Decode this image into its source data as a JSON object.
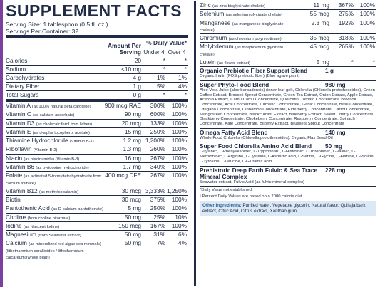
{
  "header": {
    "title": "SUPPLEMENT FACTS",
    "serving_size": "Serving Size: 1 tablespoon (0.5 fl. oz.)",
    "servings_per_container": "Servings Per Container: 32"
  },
  "columns": {
    "amount": "Amount Per Serving",
    "daily_value": "% Daily Value*",
    "under": "Under 4",
    "over": "Over 4"
  },
  "left_rows": [
    {
      "name": "Calories",
      "amount": "20",
      "under": "*",
      "over": "*"
    },
    {
      "name": "Sodium",
      "amount": "<10 mg",
      "under": "*",
      "over": "*"
    },
    {
      "name": "Carbohydrates",
      "amount": "4 g",
      "under": "1%",
      "over": "1%"
    },
    {
      "name": "Dietary Fiber",
      "amount": "1 g",
      "under": "5%",
      "over": "4%"
    },
    {
      "name": "Total Sugars",
      "amount": "0 g",
      "under": "*",
      "over": "*"
    },
    {
      "name": "Vitamin A",
      "note": "(as 100% natural beta carotene)",
      "amount": "900 mcg RAE",
      "under": "300%",
      "over": "100%"
    },
    {
      "name": "Vitamin C",
      "note": "(as calcium ascorbate)",
      "amount": "90 mg",
      "under": "600%",
      "over": "100%"
    },
    {
      "name": "Vitamin D3",
      "note": "(as cholecalciferol from lichen)",
      "amount": "20 mcg",
      "under": "133%",
      "over": "100%"
    },
    {
      "name": "Vitamin E",
      "note": "(as d-alpha tocopherol acetate)",
      "amount": "15 mg",
      "under": "250%",
      "over": "100%"
    },
    {
      "name": "Thiamine Hydrochloride",
      "note": "(Vitamin B-1)",
      "amount": "1.2 mg",
      "under": "1,200%",
      "over": "100%"
    },
    {
      "name": "Riboflavin",
      "note": "(Vitamin B-2)",
      "amount": "1.3 mg",
      "under": "260%",
      "over": "100%"
    },
    {
      "name": "Niacin",
      "note": "(as niacinamide) (Vitamin B-3)",
      "amount": "16 mg",
      "under": "267%",
      "over": "100%"
    },
    {
      "name": "Vitamin B6",
      "note": "(as pyridoxine hydrochloride)",
      "amount": "1.7 mg",
      "under": "340%",
      "over": "100%"
    },
    {
      "name": "Folate",
      "note": "(as activated 5-formyltetrahydrofolate from calcium folinate)",
      "amount": "400 mcg DFE",
      "under": "267%",
      "over": "100%"
    },
    {
      "name": "Vitamin B12",
      "note": "(as methylcobalamin)",
      "amount": "30 mcg",
      "under": "3,333%",
      "over": "1,250%"
    },
    {
      "name": "Biotin",
      "amount": "30 mcg",
      "under": "375%",
      "over": "100%"
    },
    {
      "name": "Pantothenic Acid",
      "note": "(as D-calcium pantothenate)",
      "amount": "5 mg",
      "under": "250%",
      "over": "100%"
    },
    {
      "name": "Choline",
      "note": "(from choline bitartrate)",
      "amount": "50 mg",
      "under": "25%",
      "over": "10%"
    },
    {
      "name": "Iodine",
      "note": "(as Nascent Iodine)",
      "amount": "150 mcg",
      "under": "167%",
      "over": "100%"
    },
    {
      "name": "Magnesium",
      "note": "(from Seawater extract)",
      "amount": "50 mg",
      "under": "31%",
      "over": "6%"
    },
    {
      "name": "Calcium",
      "note": "(as mineralized red algae sea minerals) (lithothamnium corallioides / lithothamnium calcareum)(whole plant)",
      "amount": "50 mg",
      "under": "7%",
      "over": "4%"
    }
  ],
  "right_rows": [
    {
      "name": "Zinc",
      "note": "(as zinc bisglycinate chelate)",
      "amount": "11 mg",
      "under": "367%",
      "over": "100%"
    },
    {
      "name": "Selenium",
      "note": "(as selenium glycinate chelate)",
      "amount": "55 mcg",
      "under": "275%",
      "over": "100%"
    },
    {
      "name": "Manganese",
      "note": "(as manganese bisglycinate chelate)",
      "amount": "2.3 mg",
      "under": "192%",
      "over": "100%"
    },
    {
      "name": "Chromium",
      "note": "(as chromium polynicotinate)",
      "amount": "35 mcg",
      "under": "318%",
      "over": "100%"
    },
    {
      "name": "Molybdenum",
      "note": "(as molybdenum glycinate chelate)",
      "amount": "45 mcg",
      "under": "265%",
      "over": "100%"
    },
    {
      "name": "Lutein",
      "note": "(as flower extract)",
      "amount": "5 mg",
      "under": "*",
      "over": "*"
    }
  ],
  "blends": [
    {
      "name": "Organic Prebiotic Fiber Support Blend",
      "amount": "1 g",
      "description": "Organic Inulin (FOS prebiotic fiber) (Blue agave plant)"
    },
    {
      "name": "Super Phyto-Food Blend",
      "amount": "980 mg",
      "description": "Aloe Vera Juice (aloe barbadensis) (inner leaf gel), Chlorella (Chlorella protothecoides), Green Coffee Extract, Broccoli Sprout Concentrate, Green Tea Extract, Onion Extract, Apple Extract, Acerola Extract, Camu Camu Concentrate, Quercetin, Tomato Concentrate, Broccoli Concentrate, Acai Concentrate, Turmeric Concentrate, Garlic Concentrate, Basil Concentrate, Oregano Concentrate, Cinnamon Concentrate, Elderberry Concentrate, Carrot Concentrate, Mangosteen Concentrate, Blackcurrant Extract, Blueberry Extract, Sweet Cherry Concentrate, Blackberry Concentrate, Chokeberry Concentrate, Raspberry Concentrate, Spinach Concentrate, Kale Concentrate, Bilberry Extract, Brussels Sprout Concentrate"
    },
    {
      "name": "Omega Fatty Acid Blend",
      "amount": "140 mg",
      "description": "Whole Food Chlorella (Chlorella protothecoides). Organic Flax Seed Oil"
    },
    {
      "name": "Super Food Chlorella Amino Acid Blend",
      "amount": "50 mg",
      "description": "L-Lysine*, L-Phenylalanine*, L-Tryptophan*, L-Histidine*, L-Threonine*, L-Valine*, L-Methionine*, L-Arginine, L-Cysteine, L-Aspartic acid, L-Serine, L-Glycine, L-Alanine, L-Proline, L-Tyrosine, L-Leucine, L-Glutamic acid"
    },
    {
      "name": "Prehistoric Deep Earth Fulvic & Sea Trace Mineral Complex",
      "amount": "228 mg",
      "description": "Seawater extract, Fulvic Acid (as fulvic mineral complex)"
    }
  ],
  "footnotes": [
    "*Daily Value not established",
    "¹ Percent Daily Values are based on a 2000 calorie diet"
  ],
  "other_ingredients": {
    "label": "Other Ingredients:",
    "text": "Purified water, Vegetable glycerin, Natural flavor, Quillaja bark extract, Citric Acid, Citrus extract, Xanthan gum"
  }
}
